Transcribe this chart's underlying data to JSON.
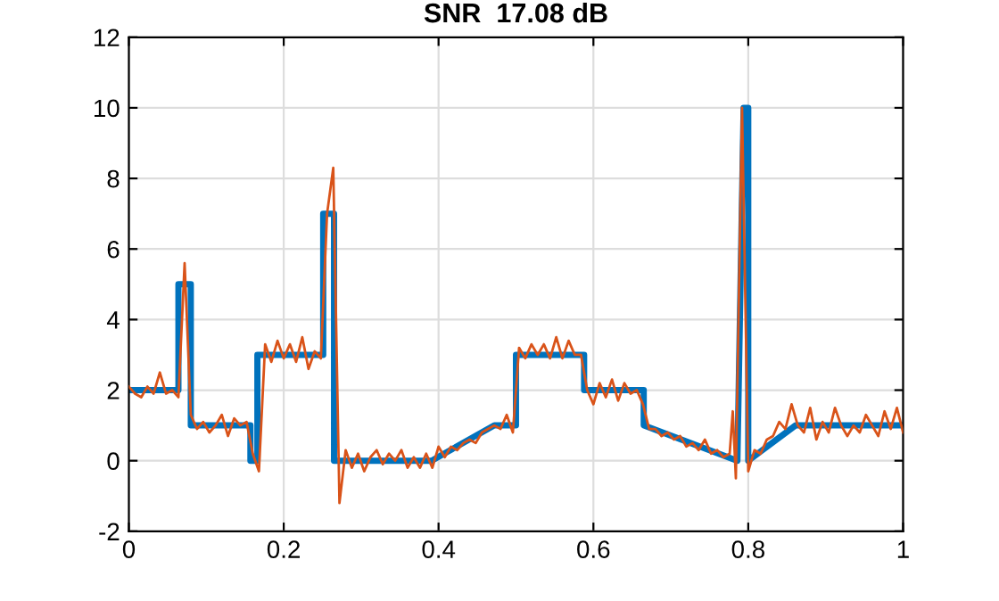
{
  "chart_data": {
    "type": "line",
    "title": "SNR  17.08 dB",
    "series": [
      {
        "color": "#0072bd",
        "x": [
          0,
          0.064,
          0.064,
          0.08,
          0.08,
          0.157,
          0.157,
          0.166,
          0.166,
          0.251,
          0.251,
          0.265,
          0.265,
          0.391,
          0.472,
          0.5,
          0.5,
          0.588,
          0.588,
          0.665,
          0.665,
          0.786,
          0.794,
          0.8,
          0.8,
          0.861,
          1
        ],
        "values": [
          2,
          2,
          5,
          5,
          1,
          1,
          0,
          0,
          3,
          3,
          7,
          7,
          0,
          0,
          1,
          1,
          3,
          3,
          2,
          2,
          1,
          0,
          10,
          10,
          0,
          1,
          1
        ]
      },
      {
        "color": "#d95319",
        "x": [
          0,
          0.008,
          0.016,
          0.024,
          0.032,
          0.04,
          0.048,
          0.056,
          0.064,
          0.072,
          0.08,
          0.088,
          0.096,
          0.104,
          0.112,
          0.12,
          0.128,
          0.136,
          0.144,
          0.152,
          0.16,
          0.168,
          0.176,
          0.184,
          0.192,
          0.2,
          0.208,
          0.216,
          0.224,
          0.232,
          0.24,
          0.248,
          0.256,
          0.264,
          0.272,
          0.28,
          0.288,
          0.296,
          0.304,
          0.312,
          0.32,
          0.328,
          0.336,
          0.344,
          0.352,
          0.36,
          0.368,
          0.376,
          0.384,
          0.392,
          0.4,
          0.408,
          0.416,
          0.424,
          0.432,
          0.44,
          0.448,
          0.456,
          0.464,
          0.472,
          0.48,
          0.488,
          0.496,
          0.504,
          0.512,
          0.52,
          0.528,
          0.536,
          0.544,
          0.552,
          0.56,
          0.568,
          0.576,
          0.584,
          0.592,
          0.6,
          0.608,
          0.616,
          0.624,
          0.632,
          0.64,
          0.648,
          0.656,
          0.664,
          0.672,
          0.68,
          0.688,
          0.696,
          0.704,
          0.712,
          0.72,
          0.728,
          0.736,
          0.744,
          0.752,
          0.76,
          0.768,
          0.776,
          0.78,
          0.784,
          0.792,
          0.8,
          0.808,
          0.816,
          0.824,
          0.832,
          0.84,
          0.848,
          0.856,
          0.864,
          0.872,
          0.88,
          0.888,
          0.896,
          0.904,
          0.912,
          0.92,
          0.928,
          0.936,
          0.944,
          0.952,
          0.96,
          0.968,
          0.976,
          0.984,
          0.992,
          1
        ],
        "values": [
          2.1,
          1.9,
          1.8,
          2.1,
          1.9,
          2.5,
          1.9,
          2.0,
          1.8,
          5.6,
          1.3,
          0.9,
          1.1,
          0.8,
          1.0,
          1.3,
          0.7,
          1.2,
          1.0,
          1.1,
          0.2,
          -0.3,
          3.3,
          2.8,
          3.4,
          2.9,
          3.3,
          2.8,
          3.5,
          2.6,
          3.1,
          2.9,
          7.0,
          8.3,
          -1.2,
          0.3,
          -0.2,
          0.2,
          -0.3,
          0.1,
          0.3,
          -0.1,
          0.2,
          0.0,
          0.3,
          -0.2,
          0.1,
          -0.2,
          0.2,
          -0.2,
          0.4,
          0.1,
          0.4,
          0.3,
          0.5,
          0.6,
          0.5,
          0.8,
          0.9,
          1.0,
          0.9,
          1.3,
          0.8,
          3.2,
          2.9,
          3.3,
          3.0,
          3.3,
          2.9,
          3.5,
          2.9,
          3.4,
          3.0,
          3.0,
          2.0,
          1.6,
          2.2,
          1.8,
          2.3,
          1.7,
          2.2,
          1.9,
          2.0,
          1.6,
          0.9,
          0.9,
          0.7,
          0.8,
          0.6,
          0.7,
          0.4,
          0.5,
          0.3,
          0.6,
          0.2,
          0.3,
          0.1,
          0.2,
          1.4,
          -0.5,
          10.0,
          -0.3,
          0.3,
          0.2,
          0.6,
          0.7,
          1.1,
          0.9,
          1.6,
          1.0,
          0.8,
          1.5,
          0.6,
          1.1,
          0.8,
          1.5,
          1.0,
          0.7,
          1.0,
          0.8,
          1.3,
          1.0,
          0.7,
          1.4,
          0.9,
          1.5,
          0.8
        ]
      }
    ],
    "xlim": [
      0,
      1
    ],
    "xticks": [
      0,
      0.2,
      0.4,
      0.6,
      0.8,
      1
    ],
    "ylim": [
      -2,
      12
    ],
    "yticks": [
      -2,
      0,
      2,
      4,
      6,
      8,
      10,
      12
    ],
    "grid": true
  }
}
